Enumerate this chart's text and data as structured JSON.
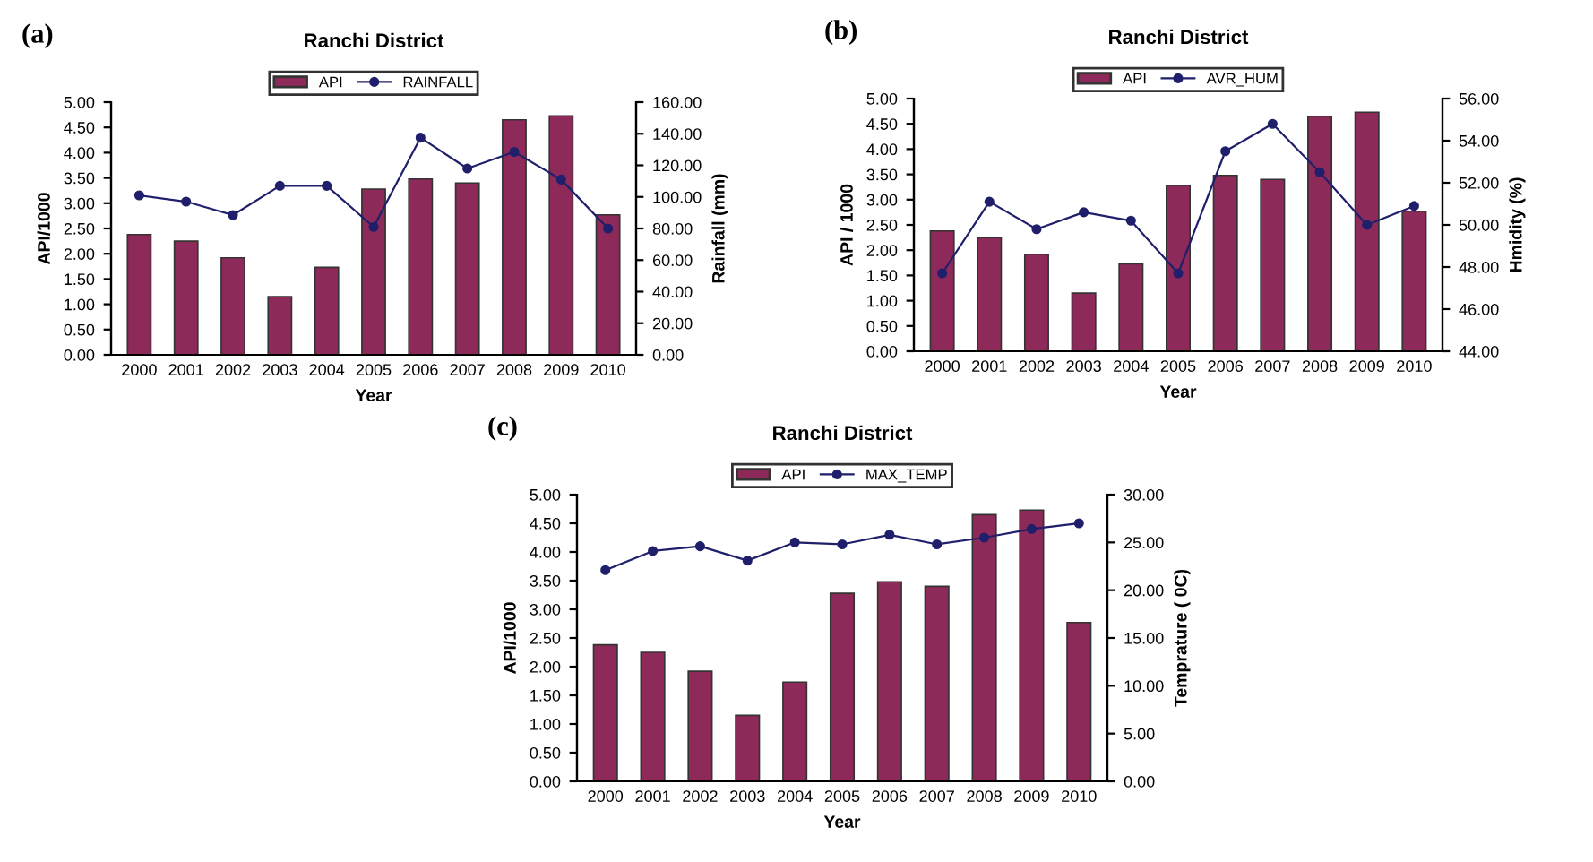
{
  "chart_data": [
    {
      "type": "bar",
      "title": "Ranchi District",
      "xlabel": "Year",
      "ylabel": "API/1000",
      "y2label": "Rainfall (mm)",
      "annotations": [
        "(a)"
      ],
      "categories": [
        "2000",
        "2001",
        "2002",
        "2003",
        "2004",
        "2005",
        "2006",
        "2007",
        "2008",
        "2009",
        "2010"
      ],
      "series": [
        {
          "name": "API",
          "color": "#8e2a5a",
          "values": [
            2.38,
            2.25,
            1.92,
            1.15,
            1.73,
            3.28,
            3.48,
            3.4,
            4.65,
            4.73,
            2.77
          ]
        },
        {
          "name": "RAINFALL",
          "type": "line",
          "axis": "y2",
          "color": "#1f1f6b",
          "marker": "circle",
          "values": [
            101,
            97,
            88.5,
            107,
            107,
            81,
            137.5,
            118,
            128.5,
            111,
            80
          ]
        }
      ],
      "ylim": [
        0,
        5
      ],
      "yticks": [
        {
          "value": 0,
          "label": "0.00"
        },
        {
          "value": 0.5,
          "label": "0.50"
        },
        {
          "value": 1,
          "label": "1.00"
        },
        {
          "value": 1.5,
          "label": "1.50"
        },
        {
          "value": 2,
          "label": "2.00"
        },
        {
          "value": 2.5,
          "label": "2.50"
        },
        {
          "value": 3,
          "label": "3.00"
        },
        {
          "value": 3.5,
          "label": "3.50"
        },
        {
          "value": 4,
          "label": "4.00"
        },
        {
          "value": 4.5,
          "label": "4.50"
        },
        {
          "value": 5,
          "label": "5.00"
        }
      ],
      "y2lim": [
        0,
        160
      ],
      "y2ticks": [
        {
          "value": 0,
          "label": "0.00"
        },
        {
          "value": 20,
          "label": "20.00"
        },
        {
          "value": 40,
          "label": "40.00"
        },
        {
          "value": 60,
          "label": "60.00"
        },
        {
          "value": 80,
          "label": "80.00"
        },
        {
          "value": 100,
          "label": "100.00"
        },
        {
          "value": 120,
          "label": "120.00"
        },
        {
          "value": 140,
          "label": "140.00"
        },
        {
          "value": 160,
          "label": "160.00"
        }
      ],
      "legend": "top",
      "grid": false
    },
    {
      "type": "bar",
      "title": "Ranchi District",
      "xlabel": "Year",
      "ylabel": "API / 1000",
      "y2label": "Hmidity (%)",
      "annotations": [
        "(b)"
      ],
      "categories": [
        "2000",
        "2001",
        "2002",
        "2003",
        "2004",
        "2005",
        "2006",
        "2007",
        "2008",
        "2009",
        "2010"
      ],
      "series": [
        {
          "name": "API",
          "color": "#8e2a5a",
          "values": [
            2.38,
            2.25,
            1.92,
            1.15,
            1.73,
            3.28,
            3.48,
            3.4,
            4.65,
            4.73,
            2.77
          ]
        },
        {
          "name": "AVR_HUM",
          "type": "line",
          "axis": "y2",
          "color": "#1f1f6b",
          "marker": "circle",
          "values": [
            47.7,
            51.1,
            49.8,
            50.6,
            50.2,
            47.7,
            53.5,
            54.8,
            52.5,
            50.0,
            50.9
          ]
        }
      ],
      "ylim": [
        0,
        5
      ],
      "yticks": [
        {
          "value": 0,
          "label": "0.00"
        },
        {
          "value": 0.5,
          "label": "0.50"
        },
        {
          "value": 1,
          "label": "1.00"
        },
        {
          "value": 1.5,
          "label": "1.50"
        },
        {
          "value": 2,
          "label": "2.00"
        },
        {
          "value": 2.5,
          "label": "2.50"
        },
        {
          "value": 3,
          "label": "3.00"
        },
        {
          "value": 3.5,
          "label": "3.50"
        },
        {
          "value": 4,
          "label": "4.00"
        },
        {
          "value": 4.5,
          "label": "4.50"
        },
        {
          "value": 5,
          "label": "5.00"
        }
      ],
      "y2lim": [
        44,
        56
      ],
      "y2ticks": [
        {
          "value": 44,
          "label": "44.00"
        },
        {
          "value": 46,
          "label": "46.00"
        },
        {
          "value": 48,
          "label": "48.00"
        },
        {
          "value": 50,
          "label": "50.00"
        },
        {
          "value": 52,
          "label": "52.00"
        },
        {
          "value": 54,
          "label": "54.00"
        },
        {
          "value": 56,
          "label": "56.00"
        }
      ],
      "legend": "top",
      "grid": false
    },
    {
      "type": "bar",
      "title": "Ranchi District",
      "xlabel": "Year",
      "ylabel": "API/1000",
      "y2label": "Temprature ( 0C)",
      "annotations": [
        "(c)"
      ],
      "categories": [
        "2000",
        "2001",
        "2002",
        "2003",
        "2004",
        "2005",
        "2006",
        "2007",
        "2008",
        "2009",
        "2010"
      ],
      "series": [
        {
          "name": "API",
          "color": "#8e2a5a",
          "values": [
            2.38,
            2.25,
            1.92,
            1.15,
            1.73,
            3.28,
            3.48,
            3.4,
            4.65,
            4.73,
            2.77
          ]
        },
        {
          "name": "MAX_TEMP",
          "type": "line",
          "axis": "y2",
          "color": "#1f1f6b",
          "marker": "circle",
          "values": [
            22.1,
            24.1,
            24.6,
            23.1,
            25.0,
            24.8,
            25.8,
            24.8,
            25.5,
            26.4,
            27.0
          ]
        }
      ],
      "ylim": [
        0,
        5
      ],
      "yticks": [
        {
          "value": 0,
          "label": "0.00"
        },
        {
          "value": 0.5,
          "label": "0.50"
        },
        {
          "value": 1,
          "label": "1.00"
        },
        {
          "value": 1.5,
          "label": "1.50"
        },
        {
          "value": 2,
          "label": "2.00"
        },
        {
          "value": 2.5,
          "label": "2.50"
        },
        {
          "value": 3,
          "label": "3.00"
        },
        {
          "value": 3.5,
          "label": "3.50"
        },
        {
          "value": 4,
          "label": "4.00"
        },
        {
          "value": 4.5,
          "label": "4.50"
        },
        {
          "value": 5,
          "label": "5.00"
        }
      ],
      "y2lim": [
        0,
        30
      ],
      "y2ticks": [
        {
          "value": 0,
          "label": "0.00"
        },
        {
          "value": 5,
          "label": "5.00"
        },
        {
          "value": 10,
          "label": "10.00"
        },
        {
          "value": 15,
          "label": "15.00"
        },
        {
          "value": 20,
          "label": "20.00"
        },
        {
          "value": 25,
          "label": "25.00"
        },
        {
          "value": 30,
          "label": "30.00"
        }
      ],
      "legend": "top",
      "grid": false
    }
  ]
}
